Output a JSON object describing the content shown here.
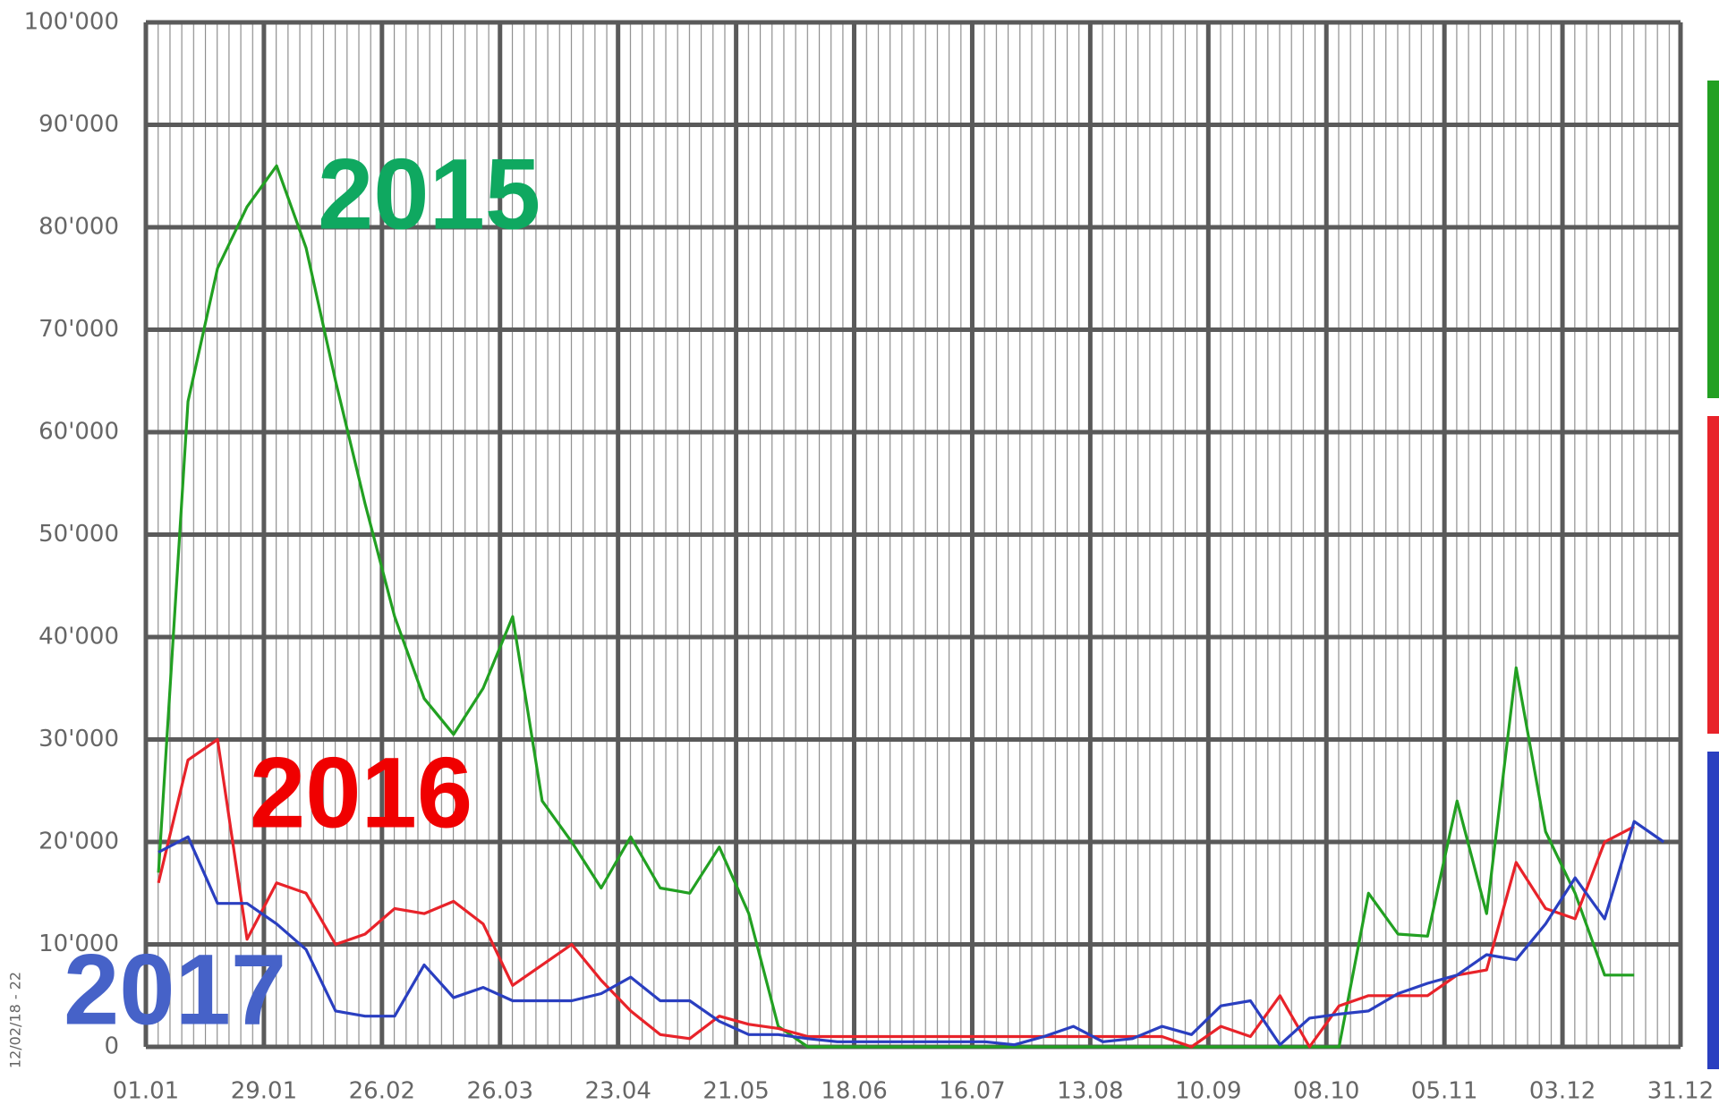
{
  "chart_data": {
    "type": "line",
    "xlim": [
      0,
      364
    ],
    "xticks": [
      {
        "value": 0,
        "label": "01.01"
      },
      {
        "value": 28,
        "label": "29.01"
      },
      {
        "value": 56,
        "label": "26.02"
      },
      {
        "value": 84,
        "label": "26.03"
      },
      {
        "value": 112,
        "label": "23.04"
      },
      {
        "value": 140,
        "label": "21.05"
      },
      {
        "value": 168,
        "label": "18.06"
      },
      {
        "value": 196,
        "label": "16.07"
      },
      {
        "value": 224,
        "label": "13.08"
      },
      {
        "value": 252,
        "label": "10.09"
      },
      {
        "value": 280,
        "label": "08.10"
      },
      {
        "value": 308,
        "label": "05.11"
      },
      {
        "value": 336,
        "label": "03.12"
      },
      {
        "value": 364,
        "label": "31.12"
      }
    ],
    "ylim": [
      0,
      100000
    ],
    "yticks": [
      0,
      {
        "value": 10000,
        "label": "10'000"
      },
      {
        "value": 20000,
        "label": "20'000"
      },
      {
        "value": 30000,
        "label": "30'000"
      },
      {
        "value": 40000,
        "label": "40'000"
      },
      {
        "value": 50000,
        "label": "50'000"
      },
      {
        "value": 60000,
        "label": "60'000"
      },
      {
        "value": 70000,
        "label": "70'000"
      },
      {
        "value": 80000,
        "label": "80'000"
      },
      {
        "value": 90000,
        "label": "90'000"
      },
      {
        "value": 100000,
        "label": "100'000"
      }
    ],
    "grid": true,
    "x": [
      3,
      10,
      17,
      24,
      31,
      38,
      45,
      52,
      59,
      66,
      73,
      80,
      87,
      94,
      101,
      108,
      115,
      122,
      129,
      136,
      143,
      150,
      157,
      164,
      171,
      178,
      185,
      192,
      199,
      206,
      213,
      220,
      227,
      234,
      241,
      248,
      255,
      262,
      269,
      276,
      283,
      290,
      297,
      304,
      311,
      318,
      325,
      332,
      339,
      346,
      353,
      360
    ],
    "series": [
      {
        "name": "2015",
        "color": "#22a022",
        "label_color": "#0fa860",
        "values": [
          17000,
          63000,
          76000,
          82000,
          86000,
          78000,
          65000,
          53000,
          42000,
          34000,
          30500,
          35000,
          42000,
          24000,
          20000,
          15500,
          20500,
          15500,
          15000,
          19500,
          13000,
          2000,
          0,
          0,
          0,
          0,
          0,
          0,
          0,
          0,
          0,
          0,
          0,
          0,
          0,
          0,
          0,
          0,
          0,
          0,
          0,
          15000,
          11000,
          10800,
          24000,
          13000,
          37000,
          21000,
          15000,
          7000,
          7000,
          null
        ]
      },
      {
        "name": "2016",
        "color": "#e8232a",
        "label_color": "#f00000",
        "values": [
          16000,
          28000,
          30000,
          10500,
          16000,
          15000,
          10000,
          11000,
          13500,
          13000,
          14200,
          12000,
          6000,
          8000,
          10000,
          6500,
          3500,
          1200,
          800,
          3000,
          2200,
          1800,
          1000,
          1000,
          1000,
          1000,
          1000,
          1000,
          1000,
          1000,
          1000,
          1000,
          1000,
          1000,
          1000,
          0,
          2000,
          1000,
          5000,
          0,
          4000,
          5000,
          5000,
          5000,
          7000,
          7500,
          18000,
          13500,
          12500,
          20000,
          21500,
          null
        ]
      },
      {
        "name": "2017",
        "color": "#2a3fc0",
        "label_color": "#4662c8",
        "values": [
          19000,
          20500,
          14000,
          14000,
          12000,
          9500,
          3500,
          3000,
          3000,
          8000,
          4800,
          5800,
          4500,
          4500,
          4500,
          5200,
          6800,
          4500,
          4500,
          2500,
          1200,
          1200,
          800,
          500,
          500,
          500,
          500,
          500,
          500,
          200,
          1000,
          2000,
          500,
          800,
          2000,
          1200,
          4000,
          4500,
          200,
          2800,
          3200,
          3500,
          5200,
          6200,
          7000,
          9000,
          8500,
          12000,
          16500,
          12500,
          22000,
          20000
        ]
      }
    ],
    "footer": "12/02/18 - 22"
  }
}
